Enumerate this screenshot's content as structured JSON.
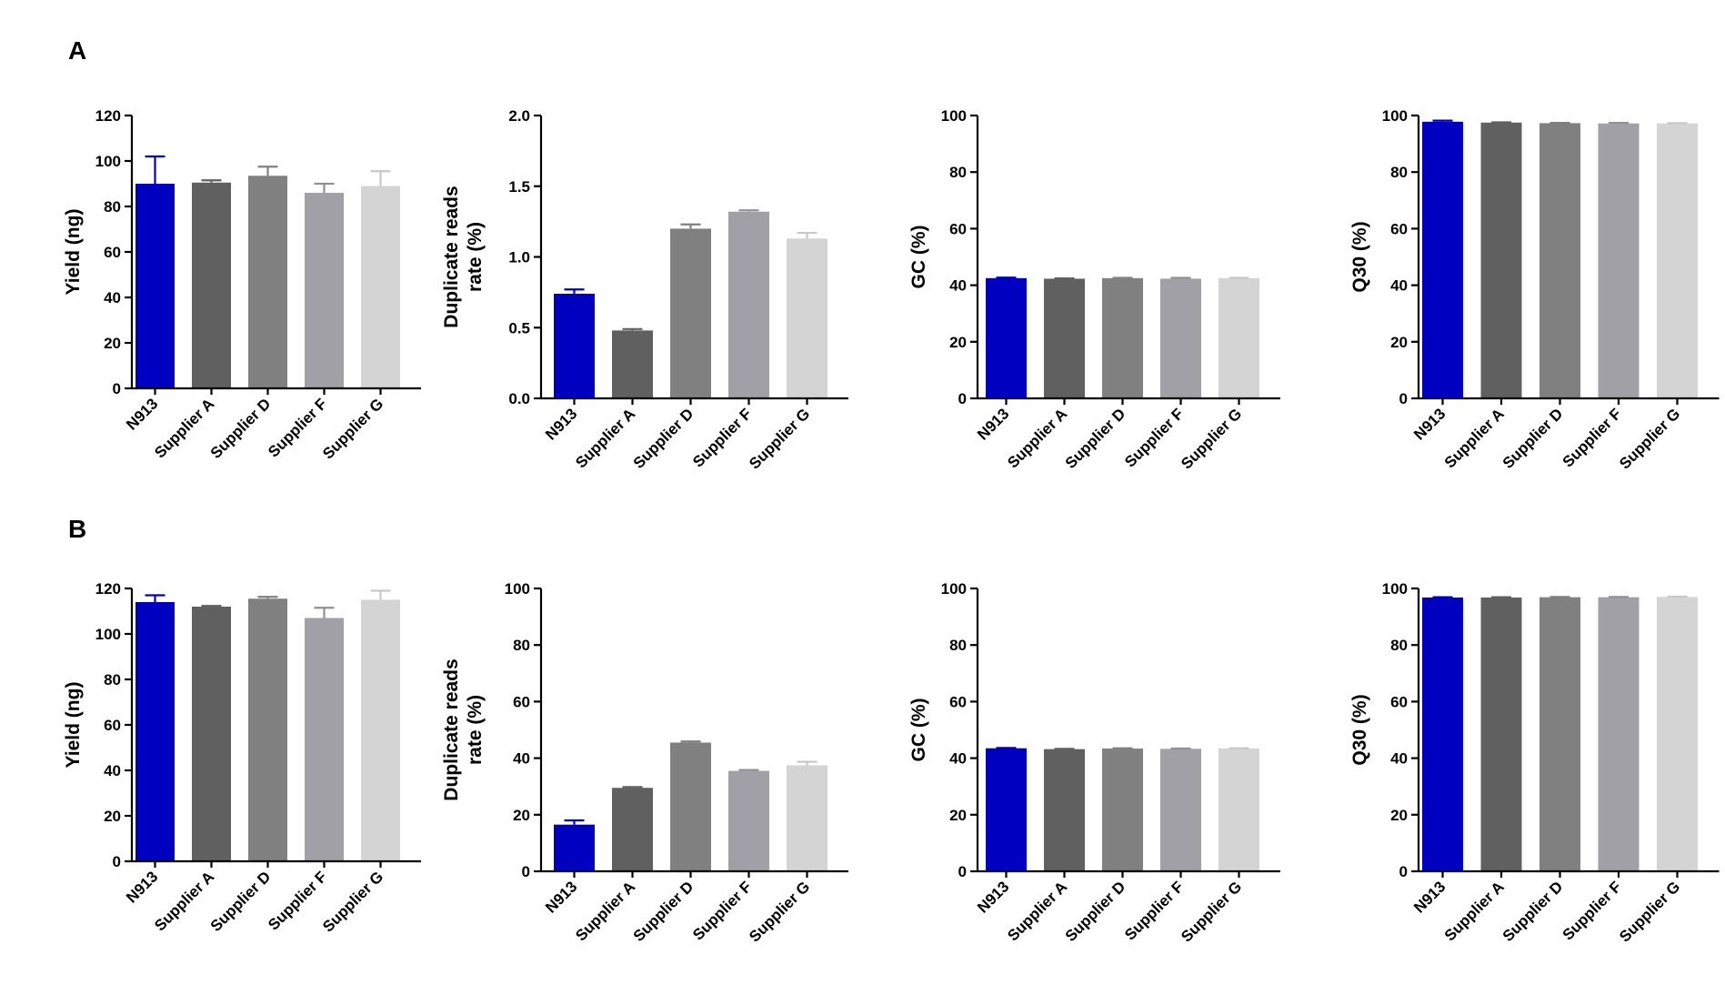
{
  "panels": [
    {
      "label": "A"
    },
    {
      "label": "B"
    }
  ],
  "colors": {
    "series": [
      "#0000c0",
      "#606060",
      "#808080",
      "#a0a0a6",
      "#d4d4d4"
    ],
    "errorbars": [
      "#0000c0",
      "#606060",
      "#808080",
      "#909096",
      "#c8c8c8"
    ],
    "axis": "#000000"
  },
  "chart_data": [
    {
      "panel": "A",
      "type": "bar",
      "title": "",
      "categories": [
        "N913",
        "Supplier A",
        "Supplier D",
        "Supplier F",
        "Supplier G"
      ],
      "values": [
        90,
        90.5,
        93.5,
        86,
        89
      ],
      "errors": [
        12,
        1,
        4,
        4,
        6.5
      ],
      "xlabel": "",
      "ylabel": [
        "Yield (ng)"
      ],
      "ylim": [
        0,
        120
      ],
      "yticks": [
        "0",
        "20",
        "40",
        "60",
        "80",
        "100",
        "120"
      ],
      "grid": false
    },
    {
      "panel": "A",
      "type": "bar",
      "title": "",
      "categories": [
        "N913",
        "Supplier A",
        "Supplier D",
        "Supplier F",
        "Supplier G"
      ],
      "values": [
        0.74,
        0.48,
        1.2,
        1.32,
        1.13
      ],
      "errors": [
        0.03,
        0.01,
        0.03,
        0.01,
        0.04
      ],
      "xlabel": "",
      "ylabel": [
        "Duplicate reads",
        "rate (%)"
      ],
      "ylim": [
        0,
        2.0
      ],
      "yticks": [
        "0.0",
        "0.5",
        "1.0",
        "1.5",
        "2.0"
      ],
      "grid": false
    },
    {
      "panel": "A",
      "type": "bar",
      "title": "",
      "categories": [
        "N913",
        "Supplier A",
        "Supplier D",
        "Supplier F",
        "Supplier G"
      ],
      "values": [
        42.5,
        42.3,
        42.5,
        42.3,
        42.5
      ],
      "errors": [
        0.2,
        0.1,
        0.1,
        0.3,
        0.1
      ],
      "xlabel": "",
      "ylabel": [
        "GC (%)"
      ],
      "ylim": [
        0,
        100
      ],
      "yticks": [
        "0",
        "20",
        "40",
        "60",
        "80",
        "100"
      ],
      "grid": false
    },
    {
      "panel": "A",
      "type": "bar",
      "title": "",
      "categories": [
        "N913",
        "Supplier A",
        "Supplier D",
        "Supplier F",
        "Supplier G"
      ],
      "values": [
        97.8,
        97.5,
        97.3,
        97.2,
        97.2
      ],
      "errors": [
        0.4,
        0.1,
        0.1,
        0.2,
        0.1
      ],
      "xlabel": "",
      "ylabel": [
        "Q30 (%)"
      ],
      "ylim": [
        0,
        100
      ],
      "yticks": [
        "0",
        "20",
        "40",
        "60",
        "80",
        "100"
      ],
      "grid": false
    },
    {
      "panel": "B",
      "type": "bar",
      "title": "",
      "categories": [
        "N913",
        "Supplier A",
        "Supplier D",
        "Supplier F",
        "Supplier G"
      ],
      "values": [
        114,
        112,
        115.5,
        107,
        115
      ],
      "errors": [
        3,
        0.3,
        0.8,
        4.5,
        4
      ],
      "xlabel": "",
      "ylabel": [
        "Yield (ng)"
      ],
      "ylim": [
        0,
        120
      ],
      "yticks": [
        "0",
        "20",
        "40",
        "60",
        "80",
        "100",
        "120"
      ],
      "grid": false
    },
    {
      "panel": "B",
      "type": "bar",
      "title": "",
      "categories": [
        "N913",
        "Supplier A",
        "Supplier D",
        "Supplier F",
        "Supplier G"
      ],
      "values": [
        16.5,
        29.5,
        45.5,
        35.5,
        37.5
      ],
      "errors": [
        1.5,
        0.3,
        0.4,
        0.3,
        1.2
      ],
      "xlabel": "",
      "ylabel": [
        "Duplicate reads",
        "rate (%)"
      ],
      "ylim": [
        0,
        100
      ],
      "yticks": [
        "0",
        "20",
        "40",
        "60",
        "80",
        "100"
      ],
      "grid": false
    },
    {
      "panel": "B",
      "type": "bar",
      "title": "",
      "categories": [
        "N913",
        "Supplier A",
        "Supplier D",
        "Supplier F",
        "Supplier G"
      ],
      "values": [
        43.5,
        43.2,
        43.4,
        43.3,
        43.4
      ],
      "errors": [
        0.1,
        0.1,
        0.1,
        0.1,
        0.1
      ],
      "xlabel": "",
      "ylabel": [
        "GC (%)"
      ],
      "ylim": [
        0,
        100
      ],
      "yticks": [
        "0",
        "20",
        "40",
        "60",
        "80",
        "100"
      ],
      "grid": false
    },
    {
      "panel": "B",
      "type": "bar",
      "title": "",
      "categories": [
        "N913",
        "Supplier A",
        "Supplier D",
        "Supplier F",
        "Supplier G"
      ],
      "values": [
        96.8,
        96.8,
        96.9,
        96.9,
        97
      ],
      "errors": [
        0.1,
        0.1,
        0.1,
        0.1,
        0.1
      ],
      "xlabel": "",
      "ylabel": [
        "Q30 (%)"
      ],
      "ylim": [
        0,
        100
      ],
      "yticks": [
        "0",
        "20",
        "40",
        "60",
        "80",
        "100"
      ],
      "grid": false
    }
  ]
}
